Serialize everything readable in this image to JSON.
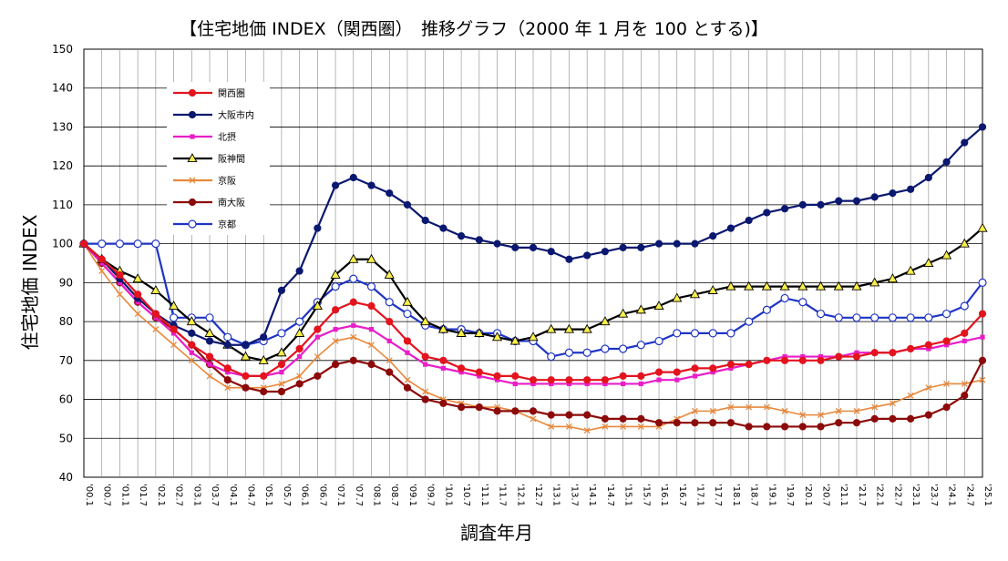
{
  "chart_data": {
    "type": "line",
    "title": "【住宅地価 INDEX（関西圏）　推移グラフ（2000 年 1 月を 100 とする)】",
    "xlabel": "調査年月",
    "ylabel": "住宅地価 INDEX",
    "ylim": [
      40,
      150
    ],
    "yticks": [
      40,
      50,
      60,
      70,
      80,
      90,
      100,
      110,
      120,
      130,
      140,
      150
    ],
    "grid": true,
    "legend_position": "top-left",
    "x_tick_labels": [
      "'00.1",
      "'00.7",
      "'01.1",
      "'01.7",
      "'02.1",
      "'02.7",
      "'03.1",
      "'03.7",
      "'04.1",
      "'04.7",
      "'05.1",
      "'05.7",
      "'06.1",
      "'06.7",
      "'07.1",
      "'07.7",
      "'08.1",
      "'08.7",
      "'09.1",
      "'09.7",
      "'10.1",
      "'10.7",
      "'11.1",
      "'11.7",
      "'12.1",
      "'12.7",
      "'13.1",
      "'13.7",
      "'14.1",
      "'14.7",
      "'15.1",
      "'15.7",
      "'16.1",
      "'16.7",
      "'17.1",
      "'17.7",
      "'18.1",
      "'18.7",
      "'19.1",
      "'19.7",
      "'20.1",
      "'20.7",
      "'21.1",
      "'21.7",
      "'22.1",
      "'22.7",
      "'23.1",
      "'23.7",
      "'24.1",
      "'24.7",
      "'25.1"
    ],
    "series": [
      {
        "name": "関西圏",
        "color": "#e3141e",
        "marker": "circle-filled",
        "values": [
          100,
          96,
          92,
          87,
          82,
          78,
          74,
          71,
          68,
          66,
          66,
          69,
          73,
          78,
          83,
          85,
          84,
          80,
          75,
          71,
          70,
          68,
          67,
          66,
          66,
          65,
          65,
          65,
          65,
          65,
          66,
          66,
          67,
          67,
          68,
          68,
          69,
          69,
          70,
          70,
          70,
          70,
          71,
          71,
          72,
          72,
          73,
          74,
          75,
          77,
          82
        ]
      },
      {
        "name": "大阪市内",
        "color": "#0b1870",
        "marker": "circle-filled",
        "values": [
          100,
          96,
          91,
          86,
          82,
          79,
          77,
          75,
          74,
          74,
          76,
          88,
          93,
          104,
          115,
          117,
          115,
          113,
          110,
          106,
          104,
          102,
          101,
          100,
          99,
          99,
          98,
          96,
          97,
          98,
          99,
          99,
          100,
          100,
          100,
          102,
          104,
          106,
          108,
          109,
          110,
          110,
          111,
          111,
          112,
          113,
          114,
          117,
          121,
          126,
          130
        ]
      },
      {
        "name": "北摂",
        "color": "#e81ec9",
        "marker": "square-filled",
        "values": [
          100,
          95,
          90,
          85,
          81,
          77,
          72,
          69,
          67,
          66,
          66,
          67,
          71,
          76,
          78,
          79,
          78,
          75,
          72,
          69,
          68,
          67,
          66,
          65,
          64,
          64,
          64,
          64,
          64,
          64,
          64,
          64,
          65,
          65,
          66,
          67,
          68,
          69,
          70,
          71,
          71,
          71,
          71,
          72,
          72,
          72,
          73,
          73,
          74,
          75,
          76
        ]
      },
      {
        "name": "阪神間",
        "color": "#000000",
        "marker": "triangle-yellow",
        "values": [
          100,
          96,
          93,
          91,
          88,
          84,
          80,
          77,
          74,
          71,
          70,
          72,
          77,
          84,
          92,
          96,
          96,
          92,
          85,
          80,
          78,
          77,
          77,
          76,
          75,
          76,
          78,
          78,
          78,
          80,
          82,
          83,
          84,
          86,
          87,
          88,
          89,
          89,
          89,
          89,
          89,
          89,
          89,
          89,
          90,
          91,
          93,
          95,
          97,
          100,
          104
        ]
      },
      {
        "name": "京阪",
        "color": "#e8883a",
        "marker": "x-cross",
        "values": [
          100,
          93,
          87,
          82,
          78,
          74,
          70,
          66,
          63,
          63,
          63,
          64,
          66,
          71,
          75,
          76,
          74,
          70,
          65,
          62,
          60,
          59,
          58,
          58,
          57,
          55,
          53,
          53,
          52,
          53,
          53,
          53,
          53,
          55,
          57,
          57,
          58,
          58,
          58,
          57,
          56,
          56,
          57,
          57,
          58,
          59,
          61,
          63,
          64,
          64,
          65
        ]
      },
      {
        "name": "南大阪",
        "color": "#8c0a0a",
        "marker": "circle-filled",
        "values": [
          100,
          95,
          90,
          85,
          81,
          78,
          74,
          69,
          65,
          63,
          62,
          62,
          64,
          66,
          69,
          70,
          69,
          67,
          63,
          60,
          59,
          58,
          58,
          57,
          57,
          57,
          56,
          56,
          56,
          55,
          55,
          55,
          54,
          54,
          54,
          54,
          54,
          53,
          53,
          53,
          53,
          53,
          54,
          54,
          55,
          55,
          55,
          56,
          58,
          61,
          70
        ]
      },
      {
        "name": "京都",
        "color": "#1f34c4",
        "marker": "circle-open",
        "values": [
          100,
          100,
          100,
          100,
          100,
          81,
          81,
          81,
          76,
          74,
          75,
          77,
          80,
          85,
          89,
          91,
          89,
          85,
          82,
          79,
          78,
          78,
          77,
          77,
          75,
          75,
          71,
          72,
          72,
          73,
          73,
          74,
          75,
          77,
          77,
          77,
          77,
          80,
          83,
          86,
          85,
          82,
          81,
          81,
          81,
          81,
          81,
          81,
          82,
          84,
          90
        ]
      }
    ]
  }
}
